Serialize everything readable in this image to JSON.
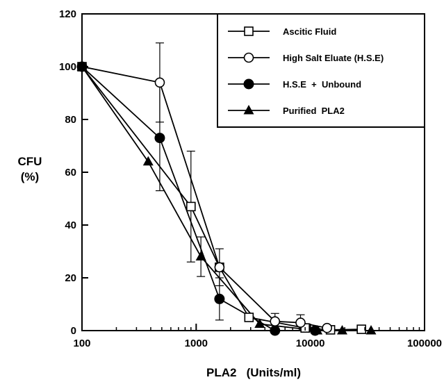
{
  "chart_data": {
    "type": "line",
    "xlabel": "PLA2   (Units/ml)",
    "ylabel": [
      "CFU",
      "(%)"
    ],
    "x_scale": "log",
    "xlim": [
      100,
      100000
    ],
    "ylim": [
      0,
      120
    ],
    "x_ticks": [
      100,
      1000,
      10000,
      100000
    ],
    "x_tick_labels": [
      "100",
      "1000",
      "10000",
      "100000"
    ],
    "y_ticks": [
      0,
      20,
      40,
      60,
      80,
      100,
      120
    ],
    "y_tick_labels": [
      "0",
      "20",
      "40",
      "60",
      "80",
      "100",
      "120"
    ],
    "grid": false,
    "legend_position": "top-right",
    "series": [
      {
        "name": "Ascitic Fluid",
        "marker": "open-square",
        "x": [
          100,
          900,
          1600,
          2900,
          9000,
          15000,
          28000
        ],
        "y": [
          100,
          47,
          24,
          5,
          1,
          0.3,
          0.5
        ],
        "err": [
          0,
          21,
          0,
          0,
          0,
          0,
          0
        ]
      },
      {
        "name": "High Salt Eluate (H.S.E)",
        "marker": "open-circle",
        "x": [
          100,
          480,
          1600,
          4900,
          8200,
          14000
        ],
        "y": [
          100,
          94,
          24,
          3.5,
          3,
          1
        ],
        "err": [
          0,
          15,
          7,
          3,
          3,
          0
        ]
      },
      {
        "name": "H.S.E  +  Unbound",
        "marker": "filled-circle",
        "x": [
          100,
          480,
          1600,
          4900,
          11000
        ],
        "y": [
          100,
          73,
          12,
          0,
          0
        ],
        "err": [
          0,
          20,
          8,
          0,
          0
        ]
      },
      {
        "name": "Purified  PLA2",
        "marker": "filled-triangle",
        "x": [
          100,
          380,
          1100,
          3600,
          11500,
          19000,
          34000
        ],
        "y": [
          100,
          64,
          28,
          2.5,
          0,
          0,
          0
        ],
        "err": [
          0,
          0,
          7.5,
          0,
          0,
          0,
          0
        ]
      }
    ]
  }
}
